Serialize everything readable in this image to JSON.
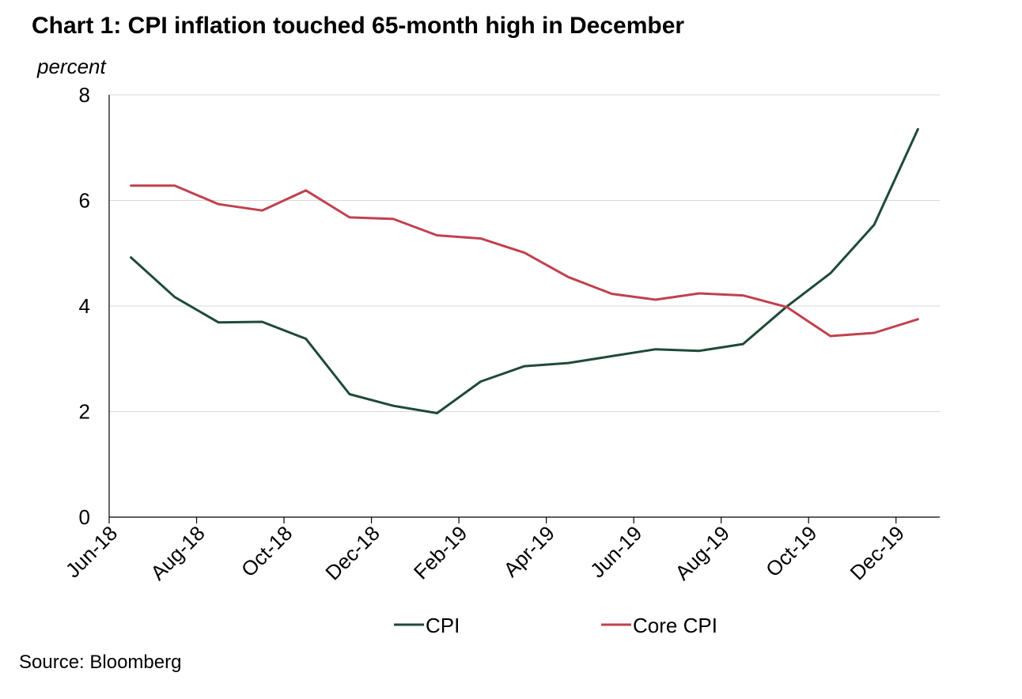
{
  "title": "Chart 1: CPI inflation touched 65-month high in December",
  "source": "Source: Bloomberg",
  "chart_data": {
    "type": "line",
    "title": "Chart 1: CPI inflation touched 65-month high in December",
    "ylabel": "percent",
    "xlabel": "",
    "ylim": [
      0,
      8
    ],
    "yticks": [
      0,
      2,
      4,
      6,
      8
    ],
    "grid": true,
    "legend_position": "bottom",
    "x": [
      "Jun-18",
      "Jul-18",
      "Aug-18",
      "Sep-18",
      "Oct-18",
      "Nov-18",
      "Dec-18",
      "Jan-19",
      "Feb-19",
      "Mar-19",
      "Apr-19",
      "May-19",
      "Jun-19",
      "Jul-19",
      "Aug-19",
      "Sep-19",
      "Oct-19",
      "Nov-19",
      "Dec-19"
    ],
    "xtick_labels": [
      "Jun-18",
      "Aug-18",
      "Oct-18",
      "Dec-18",
      "Feb-19",
      "Apr-19",
      "Jun-19",
      "Aug-19",
      "Oct-19",
      "Dec-19"
    ],
    "series": [
      {
        "name": "CPI",
        "color": "#1f4a38",
        "values": [
          4.92,
          4.17,
          3.69,
          3.7,
          3.38,
          2.33,
          2.11,
          1.97,
          2.57,
          2.86,
          2.92,
          3.05,
          3.18,
          3.15,
          3.28,
          3.99,
          4.62,
          5.54,
          7.35
        ]
      },
      {
        "name": "Core CPI",
        "color": "#c0414f",
        "values": [
          6.28,
          6.28,
          5.93,
          5.81,
          6.19,
          5.68,
          5.65,
          5.34,
          5.28,
          5.01,
          4.55,
          4.23,
          4.12,
          4.24,
          4.2,
          3.98,
          3.43,
          3.49,
          3.75
        ]
      }
    ]
  }
}
